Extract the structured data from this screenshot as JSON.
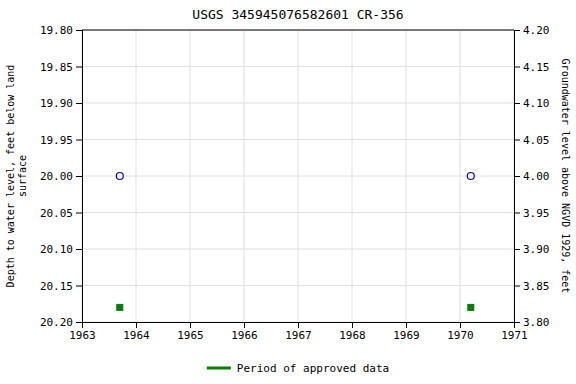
{
  "chart_data": {
    "type": "scatter",
    "title": "USGS 345945076582601 CR-356",
    "y_label": "Depth to water level, feet below land\nsurface",
    "y2_label": "Groundwater level above NGVD 1929, feet",
    "x": [
      1963.7,
      1970.2
    ],
    "series": [
      {
        "color": "#0000cc",
        "marker": "open-circle",
        "values": [
          20.0,
          20.0
        ]
      },
      {
        "name": "Period of approved data",
        "color": "#008000",
        "marker": "square",
        "values": [
          20.18,
          20.18
        ]
      }
    ],
    "xlim": [
      1963,
      1971
    ],
    "xticks": [
      1963,
      1964,
      1965,
      1966,
      1967,
      1968,
      1969,
      1970,
      1971
    ],
    "ylim": [
      20.2,
      19.8
    ],
    "yticks": [
      {
        "value": 19.8,
        "label": "19.80"
      },
      {
        "value": 19.85,
        "label": "19.85"
      },
      {
        "value": 19.9,
        "label": "19.90"
      },
      {
        "value": 19.95,
        "label": "19.95"
      },
      {
        "value": 20.0,
        "label": "20.00"
      },
      {
        "value": 20.05,
        "label": "20.05"
      },
      {
        "value": 20.1,
        "label": "20.10"
      },
      {
        "value": 20.15,
        "label": "20.15"
      },
      {
        "value": 20.2,
        "label": "20.20"
      }
    ],
    "y2lim": [
      3.8,
      4.2
    ],
    "y2ticks": [
      {
        "value": 4.2,
        "label": "4.20"
      },
      {
        "value": 4.15,
        "label": "4.15"
      },
      {
        "value": 4.1,
        "label": "4.10"
      },
      {
        "value": 4.05,
        "label": "4.05"
      },
      {
        "value": 4.0,
        "label": "4.00"
      },
      {
        "value": 3.95,
        "label": "3.95"
      },
      {
        "value": 3.9,
        "label": "3.90"
      },
      {
        "value": 3.85,
        "label": "3.85"
      },
      {
        "value": 3.8,
        "label": "3.80"
      }
    ],
    "grid": true,
    "legend": "bottom"
  }
}
